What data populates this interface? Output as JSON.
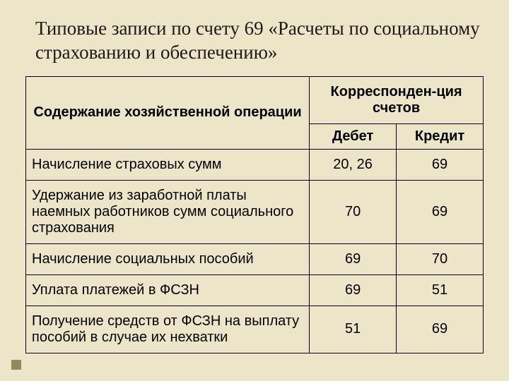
{
  "title": "Типовые записи по счету 69 «Расчеты по социальному страхованию и обеспечению»",
  "table": {
    "col_widths": {
      "op": "62%",
      "debit": "19%",
      "credit": "19%"
    },
    "header": {
      "operation": "Содержание хозяйственной операции",
      "correspondence": "Корреспонден-ция счетов",
      "debit": "Дебет",
      "credit": "Кредит"
    },
    "rows": [
      {
        "op": "Начисление страховых сумм",
        "debit": "20, 26",
        "credit": "69"
      },
      {
        "op": "Удержание из заработной платы наемных работников сумм социального страхования",
        "debit": "70",
        "credit": "69"
      },
      {
        "op": "Начисление социальных пособий",
        "debit": "69",
        "credit": "70"
      },
      {
        "op": "Уплата платежей в ФСЗН",
        "debit": "69",
        "credit": "51"
      },
      {
        "op": "Получение средств от ФСЗН на выплату пособий в случае их нехватки",
        "debit": "51",
        "credit": "69"
      }
    ],
    "border_color": "#000000",
    "font_size_pt": 15
  },
  "style": {
    "background": "#ece5c8",
    "accent_square": "#908a5a",
    "title_font": "Times New Roman"
  }
}
